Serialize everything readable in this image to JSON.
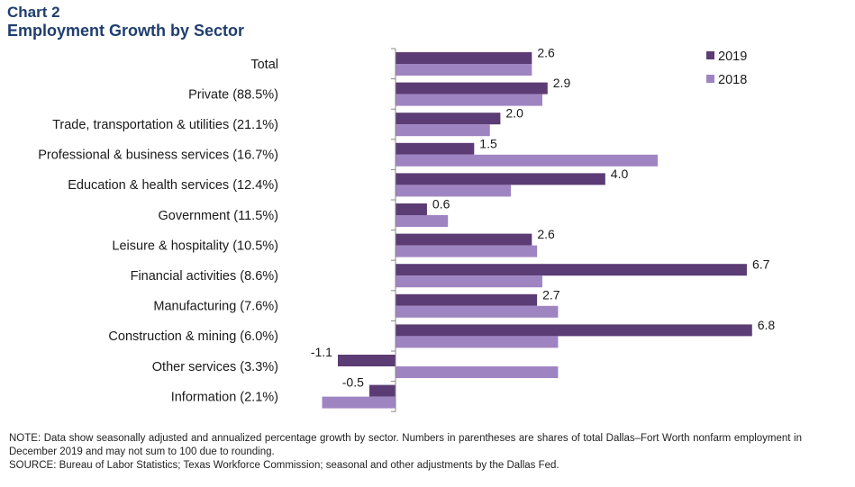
{
  "header": {
    "chart_label": "Chart 2",
    "title": "Employment Growth by Sector"
  },
  "colors": {
    "series_2019": "#5b3c74",
    "series_2018": "#9f84c2",
    "title": "#1f3e6e"
  },
  "chart_data": {
    "type": "bar",
    "orientation": "horizontal",
    "title": "Employment Growth by Sector",
    "categories": [
      "Total",
      "Private (88.5%)",
      "Trade, transportation & utilities (21.1%)",
      "Professional & business services (16.7%)",
      "Education & health services (12.4%)",
      "Government (11.5%)",
      "Leisure & hospitality (10.5%)",
      "Financial activities (8.6%)",
      "Manufacturing (7.6%)",
      "Construction & mining (6.0%)",
      "Other services (3.3%)",
      "Information (2.1%)"
    ],
    "series": [
      {
        "name": "2019",
        "values": [
          2.6,
          2.9,
          2.0,
          1.5,
          4.0,
          0.6,
          2.6,
          6.7,
          2.7,
          6.8,
          -1.1,
          -0.5
        ],
        "data_labels": [
          "2.6",
          "2.9",
          "2.0",
          "1.5",
          "4.0",
          "0.6",
          "2.6",
          "6.7",
          "2.7",
          "6.8",
          "-1.1",
          "-0.5"
        ]
      },
      {
        "name": "2018",
        "values": [
          2.6,
          2.8,
          1.8,
          5.0,
          2.2,
          1.0,
          2.7,
          2.8,
          3.1,
          3.1,
          3.1,
          -1.4
        ]
      }
    ],
    "xlim": [
      -1.4,
      8.5
    ],
    "legend_position": "top-right",
    "grid": false
  },
  "notes": {
    "note": "NOTE: Data show seasonally adjusted and annualized percentage growth by sector. Numbers in parentheses are shares of total Dallas–Fort Worth nonfarm employment in December 2019 and may not sum to 100 due to rounding.",
    "source": "SOURCE: Bureau of Labor Statistics; Texas Workforce Commission; seasonal and other adjustments by the Dallas Fed."
  }
}
